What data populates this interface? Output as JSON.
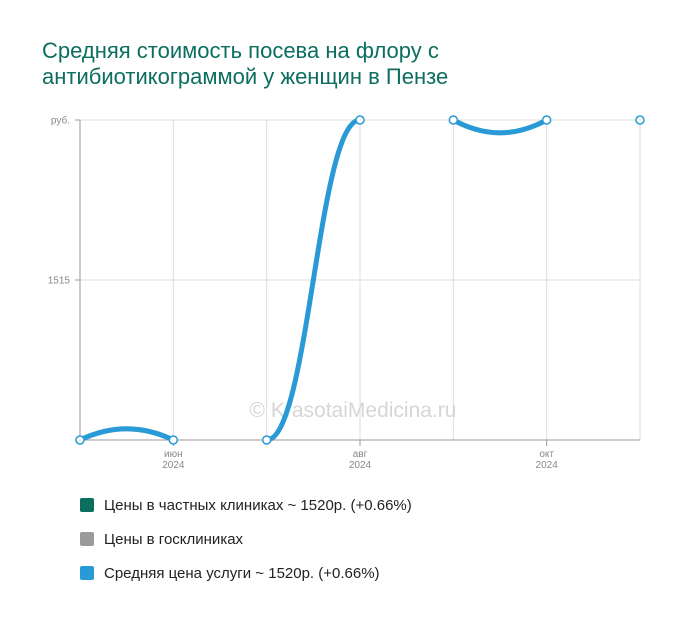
{
  "title_lines": [
    "Средняя стоимость посева на флору с",
    "антибиотикограммой у женщин в Пензе"
  ],
  "watermark": "© KrasotaiMedicina.ru",
  "colors": {
    "title": "#0b6e5f",
    "private": "#0b6e5f",
    "public": "#9a9a9a",
    "average": "#2a9ad6",
    "grid": "#dcdcdc",
    "axis": "#9a9a9a"
  },
  "chart_data": {
    "type": "line",
    "y_ticks": [
      {
        "value": 1510,
        "label": ""
      },
      {
        "value": 1515,
        "label": "1515"
      },
      {
        "value": 1520,
        "label": "руб."
      }
    ],
    "ylim": [
      1510,
      1520
    ],
    "x_ticks": [
      {
        "index": 1,
        "label": "июн",
        "sub": "2024"
      },
      {
        "index": 3,
        "label": "авг",
        "sub": "2024"
      },
      {
        "index": 5,
        "label": "окт",
        "sub": "2024"
      }
    ],
    "x_range": [
      0,
      6
    ],
    "series": [
      {
        "name": "Средняя цена услуги",
        "segments": [
          {
            "points": [
              [
                0,
                1510
              ],
              [
                1,
                1510
              ]
            ],
            "peak": 1510.35
          },
          {
            "points": [
              [
                2,
                1510
              ],
              [
                3,
                1520
              ]
            ]
          },
          {
            "points": [
              [
                4,
                1520
              ],
              [
                5,
                1520
              ]
            ],
            "peak": 1519.6
          }
        ],
        "markers": [
          [
            0,
            1510
          ],
          [
            1,
            1510
          ],
          [
            2,
            1510
          ],
          [
            3,
            1520
          ],
          [
            4,
            1520
          ],
          [
            5,
            1520
          ],
          [
            6,
            1520
          ]
        ]
      }
    ],
    "legend": [
      {
        "label": "Цены в частных клиниках ~ 1520р. (+0.66%)",
        "color": "#0b6e5f"
      },
      {
        "label": "Цены в госклиниках",
        "color": "#9a9a9a"
      },
      {
        "label": "Средняя цена услуги ~ 1520р. (+0.66%)",
        "color": "#2a9ad6"
      }
    ]
  }
}
